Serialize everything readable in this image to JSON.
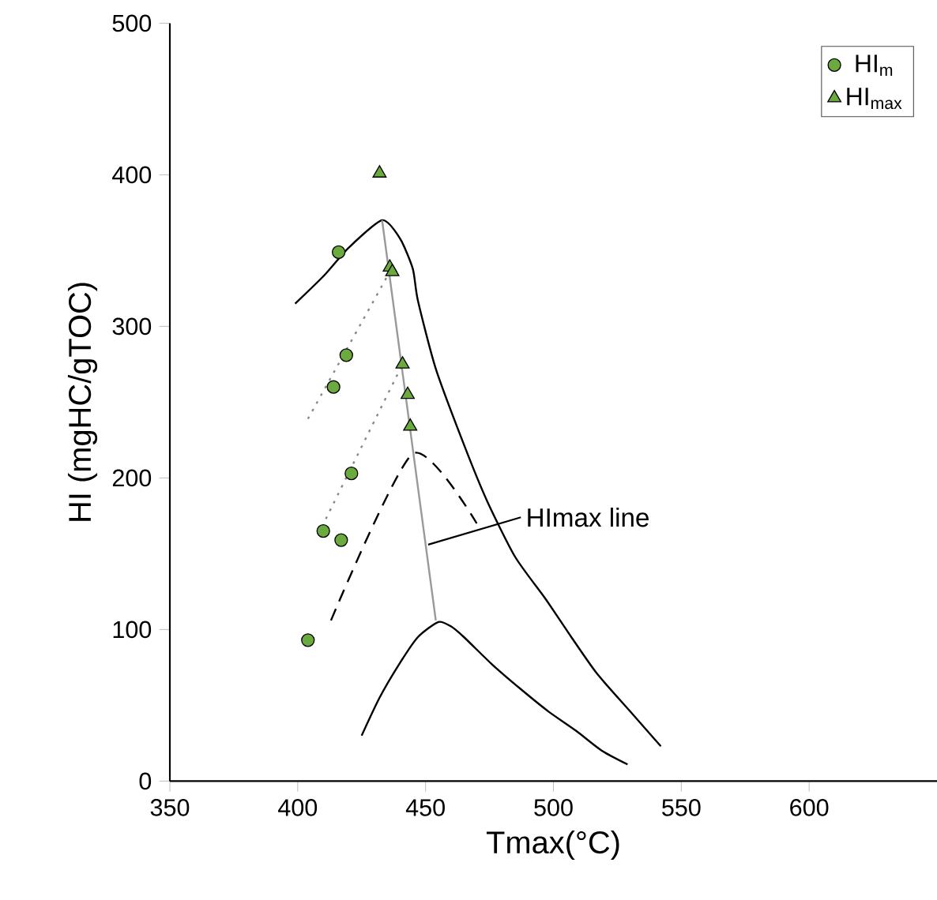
{
  "chart_data": {
    "type": "scatter",
    "xlabel": "Tmax(°C)",
    "ylabel": "HI (mgHC/gTOC)",
    "xlim": [
      350,
      650
    ],
    "xticks": [
      350,
      400,
      450,
      500,
      550,
      600
    ],
    "ylim": [
      0,
      500
    ],
    "yticks": [
      0,
      100,
      200,
      300,
      400,
      500
    ],
    "grid": false,
    "legend": "top right",
    "series": [
      {
        "type": "line",
        "color": "#000000",
        "line_style": "solid",
        "x": [
          399,
          410,
          420,
          433,
          440,
          445,
          447,
          454,
          465,
          474,
          485,
          497,
          507,
          517,
          530,
          542
        ],
        "values": [
          315,
          333,
          352,
          370,
          358,
          338,
          317,
          272,
          222,
          185,
          148,
          120,
          95,
          71,
          46,
          23
        ]
      },
      {
        "type": "line",
        "color": "#000000",
        "line_style": "solid",
        "x": [
          425,
          432,
          440,
          447,
          455,
          460,
          465,
          476,
          487,
          498,
          509,
          519,
          529
        ],
        "values": [
          30,
          55,
          78,
          95,
          105,
          102,
          95,
          77,
          61,
          46,
          33,
          20,
          11
        ]
      },
      {
        "type": "line",
        "color": "#999999",
        "line_style": "solid",
        "x": [
          433,
          454
        ],
        "values": [
          370,
          106
        ]
      },
      {
        "type": "line",
        "color": "#000000",
        "line_style": "dashed",
        "x": [
          413,
          445,
          470
        ],
        "values": [
          106,
          216,
          170
        ]
      },
      {
        "type": "line",
        "color": "#888888",
        "line_style": "dotted",
        "x": [
          404,
          436
        ],
        "values": [
          239,
          336
        ]
      },
      {
        "type": "line",
        "color": "#888888",
        "line_style": "dotted",
        "x": [
          411,
          441
        ],
        "values": [
          173,
          275
        ]
      },
      {
        "name": "HI$_{m}$",
        "color": "#6aaa3f",
        "marker": "circle",
        "x": [
          416,
          419,
          414,
          421,
          410,
          417,
          404
        ],
        "values": [
          349,
          281,
          260,
          203,
          165,
          159,
          93
        ]
      },
      {
        "name": "HI$_{max}$",
        "color": "#6aaa3f",
        "marker": "triangle",
        "x": [
          432,
          436,
          437,
          441,
          443,
          444
        ],
        "values": [
          401,
          339,
          336,
          275,
          255,
          234
        ]
      }
    ],
    "annotations": [
      {
        "text": "HImax line",
        "x": 451,
        "y": 156
      }
    ]
  }
}
